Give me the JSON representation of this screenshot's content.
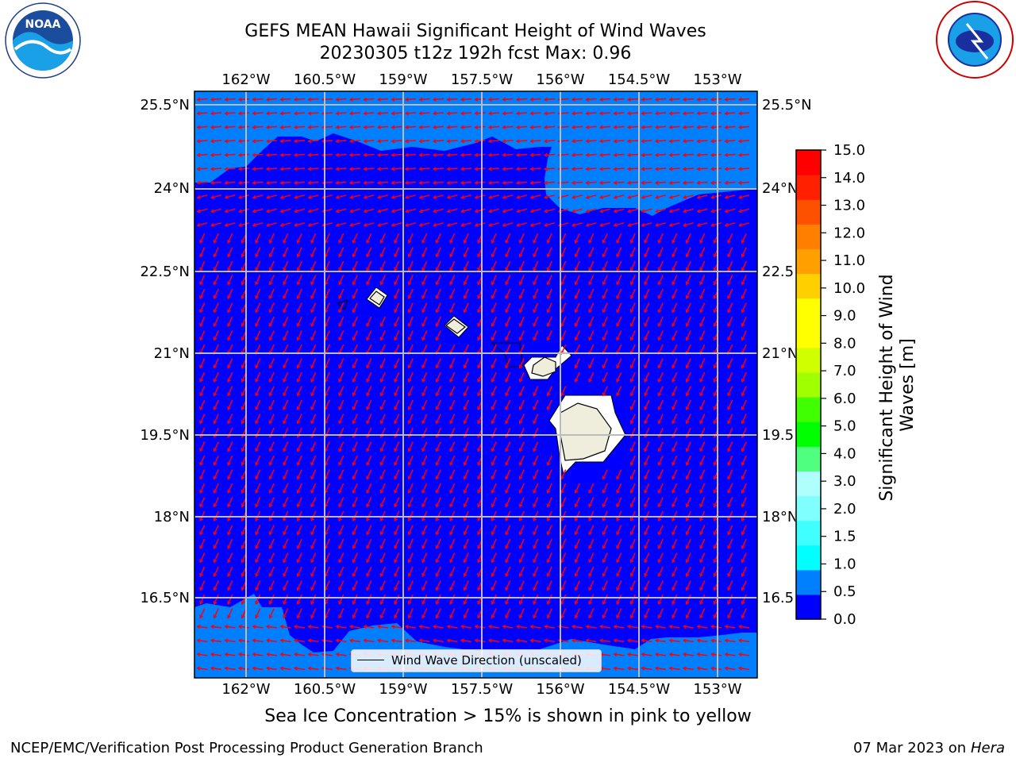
{
  "title_line1": "GEFS MEAN Hawaii Significant Height of Wind Waves",
  "title_line2": "20230305 t12z 192h fcst   Max: 0.96",
  "lon_labels": [
    "162°W",
    "160.5°W",
    "159°W",
    "157.5°W",
    "156°W",
    "154.5°W",
    "153°W"
  ],
  "lat_labels": [
    "25.5°N",
    "24°N",
    "22.5°N",
    "21°N",
    "19.5°N",
    "18°N",
    "16.5°N"
  ],
  "colorbar": {
    "label": "Significant Height of Wind Waves [m]",
    "ticks": [
      "15.0",
      "14.0",
      "13.0",
      "12.0",
      "11.0",
      "10.0",
      "9.0",
      "8.0",
      "7.0",
      "6.0",
      "5.0",
      "4.0",
      "3.0",
      "2.0",
      "1.5",
      "1.0",
      "0.5",
      "0.0"
    ],
    "colors_bottom_to_top": [
      "#0000ff",
      "#0080ff",
      "#00ffff",
      "#40ffff",
      "#80ffff",
      "#b0ffff",
      "#50ff80",
      "#00ff00",
      "#40ff00",
      "#a0ff00",
      "#d0ff00",
      "#ffff00",
      "#ffff00",
      "#ffd000",
      "#ffa000",
      "#ff8000",
      "#ff5000",
      "#ff2000",
      "#ff0000"
    ]
  },
  "legend_text": "Wind Wave Direction (unscaled)",
  "bottom_note": "Sea Ice Concentration > 15% is shown in pink to yellow",
  "footer_left": "NCEP/EMC/Verification Post Processing Product Generation Branch",
  "footer_date": "07 Mar 2023 on",
  "footer_host": "Hera",
  "colors": {
    "deep_blue": "#0000ff",
    "light_blue": "#0080ff",
    "land": "#efeddc",
    "arrow": "#ff0000",
    "grid": "#bbbbbb"
  },
  "logos": [
    "noaa-logo",
    "nws-logo"
  ]
}
